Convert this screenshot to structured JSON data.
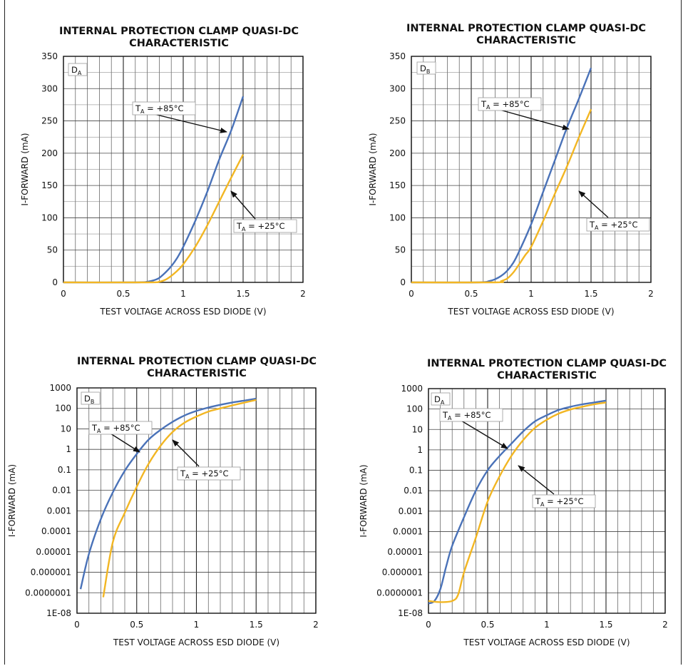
{
  "chart_data": [
    {
      "type": "line",
      "title": "INTERNAL PROTECTION CLAMP QUASI-DC CHARACTERISTIC",
      "xlabel": "TEST VOLTAGE ACROSS ESD DIODE (V)",
      "ylabel": "I-FORWARD (mA)",
      "scale": "linear",
      "xlim": [
        0,
        2
      ],
      "ylim": [
        0,
        350
      ],
      "x_ticks": [
        "0",
        "0.5",
        "1",
        "1.5",
        "2"
      ],
      "y_ticks": [
        "0",
        "50",
        "100",
        "150",
        "200",
        "250",
        "300",
        "350"
      ],
      "corner_label": "DA",
      "series": [
        {
          "name": "TA = +85°C",
          "color": "#4a72b8",
          "points": [
            [
              0,
              0
            ],
            [
              0.6,
              0
            ],
            [
              0.7,
              1
            ],
            [
              0.75,
              3
            ],
            [
              0.8,
              7
            ],
            [
              0.85,
              15
            ],
            [
              0.9,
              25
            ],
            [
              0.95,
              38
            ],
            [
              1.0,
              55
            ],
            [
              1.1,
              95
            ],
            [
              1.2,
              140
            ],
            [
              1.3,
              190
            ],
            [
              1.4,
              235
            ],
            [
              1.5,
              288
            ]
          ]
        },
        {
          "name": "TA = +25°C",
          "color": "#f2b623",
          "points": [
            [
              0,
              0
            ],
            [
              0.7,
              0
            ],
            [
              0.8,
              1
            ],
            [
              0.85,
              4
            ],
            [
              0.9,
              10
            ],
            [
              0.95,
              18
            ],
            [
              1.0,
              28
            ],
            [
              1.1,
              55
            ],
            [
              1.2,
              88
            ],
            [
              1.3,
              125
            ],
            [
              1.4,
              162
            ],
            [
              1.5,
              198
            ]
          ]
        }
      ],
      "annotations": [
        "TA = +85°C",
        "TA = +25°C"
      ]
    },
    {
      "type": "line",
      "title": "INTERNAL PROTECTION CLAMP QUASI-DC CHARACTERISTIC",
      "xlabel": "TEST VOLTAGE ACROSS ESD DIODE (V)",
      "ylabel": "I-FORWARD (mA)",
      "scale": "linear",
      "xlim": [
        0,
        2
      ],
      "ylim": [
        0,
        350
      ],
      "x_ticks": [
        "0",
        "0.5",
        "1",
        "1.5",
        "2"
      ],
      "y_ticks": [
        "0",
        "50",
        "100",
        "150",
        "200",
        "250",
        "300",
        "350"
      ],
      "corner_label": "DB",
      "series": [
        {
          "name": "TA = +85°C",
          "color": "#4a72b8",
          "points": [
            [
              0,
              0
            ],
            [
              0.55,
              0
            ],
            [
              0.65,
              2
            ],
            [
              0.7,
              5
            ],
            [
              0.75,
              10
            ],
            [
              0.8,
              18
            ],
            [
              0.85,
              30
            ],
            [
              0.9,
              48
            ],
            [
              1.0,
              90
            ],
            [
              1.1,
              140
            ],
            [
              1.2,
              190
            ],
            [
              1.3,
              240
            ],
            [
              1.4,
              285
            ],
            [
              1.5,
              332
            ]
          ]
        },
        {
          "name": "TA = +25°C",
          "color": "#f2b623",
          "points": [
            [
              0,
              0
            ],
            [
              0.7,
              0
            ],
            [
              0.75,
              2
            ],
            [
              0.8,
              6
            ],
            [
              0.85,
              15
            ],
            [
              0.9,
              28
            ],
            [
              0.95,
              42
            ],
            [
              1.0,
              55
            ],
            [
              1.1,
              95
            ],
            [
              1.2,
              138
            ],
            [
              1.3,
              180
            ],
            [
              1.4,
              225
            ],
            [
              1.5,
              268
            ]
          ]
        }
      ],
      "annotations": [
        "TA = +85°C",
        "TA = +25°C"
      ]
    },
    {
      "type": "line",
      "title": "INTERNAL PROTECTION CLAMP QUASI-DC CHARACTERISTIC",
      "xlabel": "TEST VOLTAGE ACROSS ESD DIODE (V)",
      "ylabel": "I-FORWARD (mA)",
      "scale": "log",
      "xlim": [
        0,
        2
      ],
      "ylim": [
        1e-08,
        1000
      ],
      "x_ticks": [
        "0",
        "0.5",
        "1",
        "1.5",
        "2"
      ],
      "y_ticks": [
        "1E-08",
        "0.0000001",
        "0.000001",
        "0.00001",
        "0.0001",
        "0.001",
        "0.01",
        "0.1",
        "1",
        "10",
        "100",
        "1000"
      ],
      "corner_label": "DB",
      "series": [
        {
          "name": "TA = +85°C",
          "color": "#4a72b8",
          "points": [
            [
              0.03,
              1.5e-07
            ],
            [
              0.1,
              8e-06
            ],
            [
              0.2,
              0.0004
            ],
            [
              0.3,
              0.008
            ],
            [
              0.4,
              0.09
            ],
            [
              0.5,
              0.6
            ],
            [
              0.6,
              3
            ],
            [
              0.7,
              9
            ],
            [
              0.8,
              22
            ],
            [
              0.9,
              45
            ],
            [
              1.0,
              75
            ],
            [
              1.1,
              110
            ],
            [
              1.2,
              150
            ],
            [
              1.3,
              195
            ],
            [
              1.4,
              240
            ],
            [
              1.5,
              300
            ]
          ]
        },
        {
          "name": "TA = +25°C",
          "color": "#f2b623",
          "points": [
            [
              0.22,
              6e-08
            ],
            [
              0.3,
              3e-05
            ],
            [
              0.4,
              0.0008
            ],
            [
              0.5,
              0.015
            ],
            [
              0.6,
              0.2
            ],
            [
              0.7,
              1.5
            ],
            [
              0.8,
              7
            ],
            [
              0.9,
              20
            ],
            [
              1.0,
              40
            ],
            [
              1.1,
              70
            ],
            [
              1.2,
              100
            ],
            [
              1.3,
              140
            ],
            [
              1.4,
              190
            ],
            [
              1.5,
              260
            ]
          ]
        }
      ],
      "annotations": [
        "TA = +85°C",
        "TA = +25°C"
      ]
    },
    {
      "type": "line",
      "title": "INTERNAL PROTECTION CLAMP QUASI-DC CHARACTERISTIC",
      "xlabel": "TEST VOLTAGE ACROSS ESD DIODE (V)",
      "ylabel": "I-FORWARD (mA)",
      "scale": "log",
      "xlim": [
        0,
        2
      ],
      "ylim": [
        1e-08,
        1000
      ],
      "x_ticks": [
        "0",
        "0.5",
        "1",
        "1.5",
        "2"
      ],
      "y_ticks": [
        "1E-08",
        "0.0000001",
        "0.000001",
        "0.00001",
        "0.0001",
        "0.001",
        "0.01",
        "0.1",
        "1",
        "10",
        "100",
        "1000"
      ],
      "corner_label": "DA",
      "series": [
        {
          "name": "TA = +85°C",
          "color": "#4a72b8",
          "points": [
            [
              0.0,
              3e-08
            ],
            [
              0.05,
              4e-08
            ],
            [
              0.1,
              1.5e-07
            ],
            [
              0.15,
              2e-06
            ],
            [
              0.2,
              2e-05
            ],
            [
              0.3,
              0.0005
            ],
            [
              0.4,
              0.01
            ],
            [
              0.5,
              0.1
            ],
            [
              0.6,
              0.5
            ],
            [
              0.7,
              2
            ],
            [
              0.8,
              8
            ],
            [
              0.9,
              25
            ],
            [
              1.0,
              50
            ],
            [
              1.1,
              90
            ],
            [
              1.2,
              130
            ],
            [
              1.3,
              170
            ],
            [
              1.4,
              210
            ],
            [
              1.5,
              260
            ]
          ]
        },
        {
          "name": "TA = +25°C",
          "color": "#f2b623",
          "points": [
            [
              0.0,
              4e-08
            ],
            [
              0.1,
              3.5e-08
            ],
            [
              0.2,
              4e-08
            ],
            [
              0.25,
              8e-08
            ],
            [
              0.3,
              1e-06
            ],
            [
              0.4,
              5e-05
            ],
            [
              0.5,
              0.003
            ],
            [
              0.6,
              0.05
            ],
            [
              0.7,
              0.5
            ],
            [
              0.8,
              3
            ],
            [
              0.9,
              12
            ],
            [
              1.0,
              30
            ],
            [
              1.1,
              60
            ],
            [
              1.2,
              95
            ],
            [
              1.3,
              130
            ],
            [
              1.4,
              170
            ],
            [
              1.5,
              210
            ]
          ]
        }
      ],
      "annotations": [
        "TA = +85°C",
        "TA = +25°C"
      ]
    }
  ]
}
